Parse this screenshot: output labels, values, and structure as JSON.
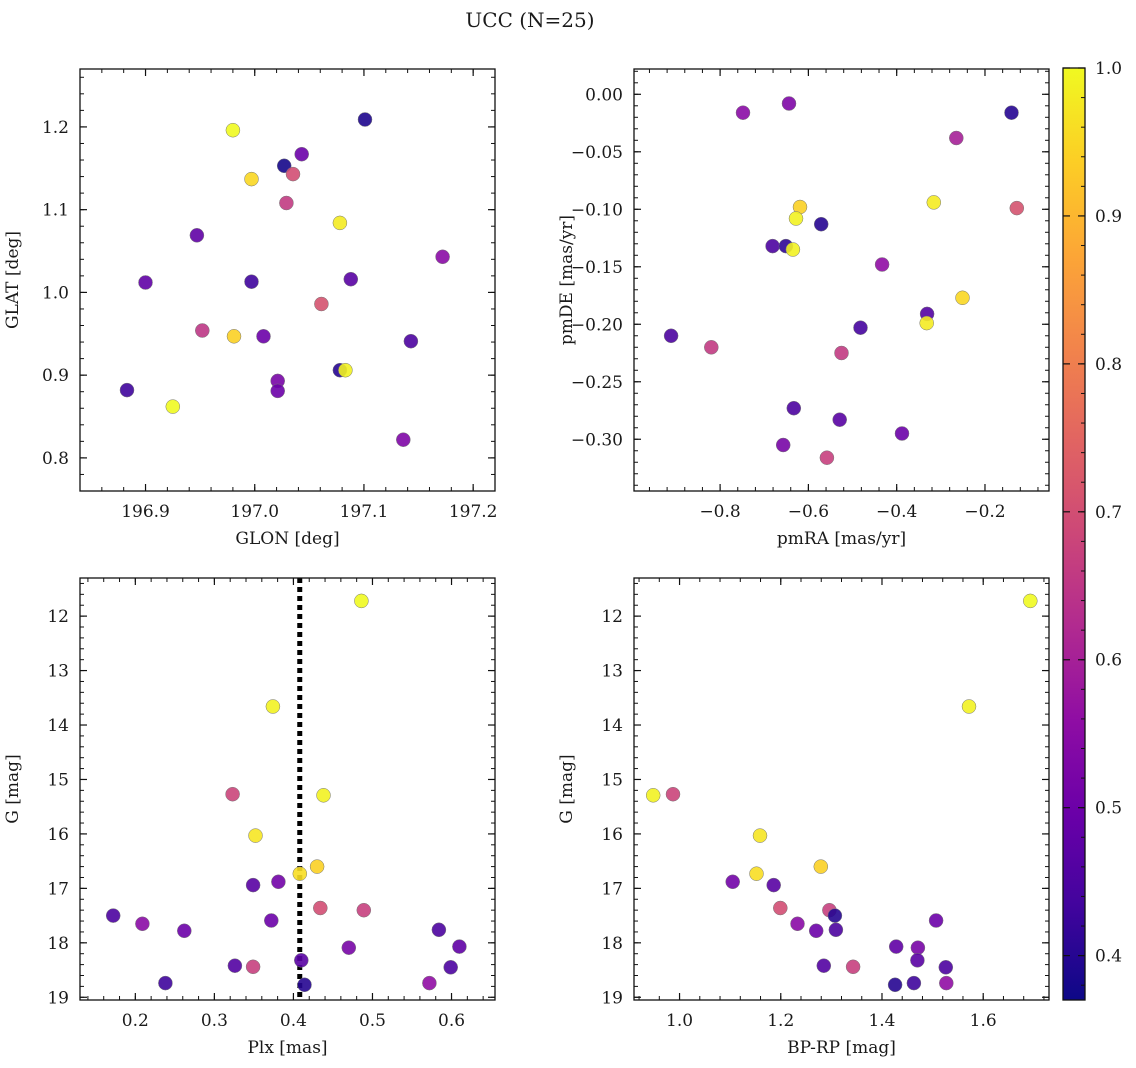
{
  "figure": {
    "title": "UCC (N=25)"
  },
  "colorbar": {
    "range": [
      0.37,
      1.0
    ],
    "ticks": [
      0.4,
      0.5,
      0.6,
      0.7,
      0.8,
      0.9,
      1.0
    ],
    "tick_labels": [
      "0.4",
      "0.5",
      "0.6",
      "0.7",
      "0.8",
      "0.9",
      "1.0"
    ],
    "colormap": "plasma"
  },
  "chart_data": [
    {
      "type": "scatter",
      "title": "",
      "xlabel": "GLON [deg]",
      "ylabel": "GLAT [deg]",
      "xlim": [
        196.84,
        197.22
      ],
      "ylim": [
        0.76,
        1.27
      ],
      "y_inverted": false,
      "xticks": [
        196.9,
        197.0,
        197.1,
        197.2
      ],
      "xtick_labels": [
        "196.9",
        "197.0",
        "197.1",
        "197.2"
      ],
      "yticks": [
        0.8,
        0.9,
        1.0,
        1.1,
        1.2
      ],
      "ytick_labels": [
        "0.8",
        "0.9",
        "1.0",
        "1.1",
        "1.2"
      ],
      "grid": false,
      "points": [
        {
          "x": 197.101,
          "y": 1.209,
          "c": 0.39
        },
        {
          "x": 196.98,
          "y": 1.196,
          "c": 1.0
        },
        {
          "x": 197.043,
          "y": 1.167,
          "c": 0.5
        },
        {
          "x": 197.027,
          "y": 1.153,
          "c": 0.38
        },
        {
          "x": 197.035,
          "y": 1.143,
          "c": 0.7
        },
        {
          "x": 196.997,
          "y": 1.137,
          "c": 0.95
        },
        {
          "x": 197.029,
          "y": 1.108,
          "c": 0.66
        },
        {
          "x": 197.078,
          "y": 1.084,
          "c": 0.98
        },
        {
          "x": 196.947,
          "y": 1.069,
          "c": 0.48
        },
        {
          "x": 197.172,
          "y": 1.043,
          "c": 0.55
        },
        {
          "x": 197.088,
          "y": 1.016,
          "c": 0.47
        },
        {
          "x": 196.997,
          "y": 1.013,
          "c": 0.43
        },
        {
          "x": 196.9,
          "y": 1.012,
          "c": 0.48
        },
        {
          "x": 197.061,
          "y": 0.986,
          "c": 0.71
        },
        {
          "x": 196.952,
          "y": 0.954,
          "c": 0.65
        },
        {
          "x": 196.981,
          "y": 0.947,
          "c": 0.94
        },
        {
          "x": 197.008,
          "y": 0.947,
          "c": 0.5
        },
        {
          "x": 197.143,
          "y": 0.941,
          "c": 0.45
        },
        {
          "x": 197.078,
          "y": 0.906,
          "c": 0.4
        },
        {
          "x": 197.083,
          "y": 0.906,
          "c": 0.99
        },
        {
          "x": 197.021,
          "y": 0.893,
          "c": 0.52
        },
        {
          "x": 196.883,
          "y": 0.882,
          "c": 0.43
        },
        {
          "x": 197.021,
          "y": 0.881,
          "c": 0.5
        },
        {
          "x": 196.925,
          "y": 0.862,
          "c": 1.0
        },
        {
          "x": 197.136,
          "y": 0.822,
          "c": 0.53
        }
      ]
    },
    {
      "type": "scatter",
      "title": "",
      "xlabel": "pmRA [mas/yr]",
      "ylabel": "pmDE [mas/yr]",
      "xlim": [
        -0.995,
        -0.055
      ],
      "ylim": [
        -0.345,
        0.022
      ],
      "y_inverted": false,
      "xticks": [
        -0.8,
        -0.6,
        -0.4,
        -0.2
      ],
      "xtick_labels": [
        "−0.8",
        "−0.6",
        "−0.4",
        "−0.2"
      ],
      "yticks": [
        0.0,
        -0.05,
        -0.1,
        -0.15,
        -0.2,
        -0.25,
        -0.3
      ],
      "ytick_labels": [
        "0.00",
        "−0.05",
        "−0.10",
        "−0.15",
        "−0.20",
        "−0.25",
        "−0.30"
      ],
      "grid": false,
      "points": [
        {
          "x": -0.644,
          "y": -0.008,
          "c": 0.53
        },
        {
          "x": -0.748,
          "y": -0.016,
          "c": 0.55
        },
        {
          "x": -0.14,
          "y": -0.016,
          "c": 0.4
        },
        {
          "x": -0.265,
          "y": -0.038,
          "c": 0.6
        },
        {
          "x": -0.316,
          "y": -0.094,
          "c": 0.98
        },
        {
          "x": -0.619,
          "y": -0.098,
          "c": 0.94
        },
        {
          "x": -0.128,
          "y": -0.099,
          "c": 0.71
        },
        {
          "x": -0.628,
          "y": -0.108,
          "c": 0.99
        },
        {
          "x": -0.571,
          "y": -0.113,
          "c": 0.4
        },
        {
          "x": -0.681,
          "y": -0.132,
          "c": 0.45
        },
        {
          "x": -0.651,
          "y": -0.132,
          "c": 0.41
        },
        {
          "x": -0.635,
          "y": -0.135,
          "c": 0.99
        },
        {
          "x": -0.433,
          "y": -0.148,
          "c": 0.56
        },
        {
          "x": -0.251,
          "y": -0.177,
          "c": 0.95
        },
        {
          "x": -0.331,
          "y": -0.191,
          "c": 0.46
        },
        {
          "x": -0.332,
          "y": -0.199,
          "c": 0.98
        },
        {
          "x": -0.482,
          "y": -0.203,
          "c": 0.44
        },
        {
          "x": -0.911,
          "y": -0.21,
          "c": 0.45
        },
        {
          "x": -0.82,
          "y": -0.22,
          "c": 0.66
        },
        {
          "x": -0.525,
          "y": -0.225,
          "c": 0.66
        },
        {
          "x": -0.633,
          "y": -0.273,
          "c": 0.45
        },
        {
          "x": -0.529,
          "y": -0.283,
          "c": 0.47
        },
        {
          "x": -0.388,
          "y": -0.295,
          "c": 0.5
        },
        {
          "x": -0.657,
          "y": -0.305,
          "c": 0.52
        },
        {
          "x": -0.558,
          "y": -0.316,
          "c": 0.67
        }
      ]
    },
    {
      "type": "scatter",
      "title": "",
      "xlabel": "Plx [mas]",
      "ylabel": "G [mag]",
      "xlim": [
        0.13,
        0.655
      ],
      "ylim": [
        11.3,
        19.05
      ],
      "y_inverted": true,
      "xticks": [
        0.2,
        0.3,
        0.4,
        0.5,
        0.6
      ],
      "xtick_labels": [
        "0.2",
        "0.3",
        "0.4",
        "0.5",
        "0.6"
      ],
      "yticks": [
        12,
        13,
        14,
        15,
        16,
        17,
        18,
        19
      ],
      "ytick_labels": [
        "12",
        "13",
        "14",
        "15",
        "16",
        "17",
        "18",
        "19"
      ],
      "grid": false,
      "vline": {
        "x": 0.408,
        "style": "dotted",
        "color": "#000000"
      },
      "points": [
        {
          "x": 0.486,
          "y": 11.72,
          "c": 1.0
        },
        {
          "x": 0.374,
          "y": 13.66,
          "c": 0.99
        },
        {
          "x": 0.323,
          "y": 15.27,
          "c": 0.68
        },
        {
          "x": 0.438,
          "y": 15.29,
          "c": 0.99
        },
        {
          "x": 0.352,
          "y": 16.03,
          "c": 0.97
        },
        {
          "x": 0.43,
          "y": 16.6,
          "c": 0.94
        },
        {
          "x": 0.408,
          "y": 16.73,
          "c": 0.96
        },
        {
          "x": 0.381,
          "y": 16.88,
          "c": 0.51
        },
        {
          "x": 0.349,
          "y": 16.94,
          "c": 0.47
        },
        {
          "x": 0.434,
          "y": 17.36,
          "c": 0.7
        },
        {
          "x": 0.489,
          "y": 17.4,
          "c": 0.67
        },
        {
          "x": 0.172,
          "y": 17.5,
          "c": 0.45
        },
        {
          "x": 0.372,
          "y": 17.59,
          "c": 0.5
        },
        {
          "x": 0.209,
          "y": 17.65,
          "c": 0.55
        },
        {
          "x": 0.584,
          "y": 17.76,
          "c": 0.45
        },
        {
          "x": 0.262,
          "y": 17.78,
          "c": 0.5
        },
        {
          "x": 0.61,
          "y": 18.07,
          "c": 0.48
        },
        {
          "x": 0.47,
          "y": 18.09,
          "c": 0.52
        },
        {
          "x": 0.41,
          "y": 18.32,
          "c": 0.47
        },
        {
          "x": 0.326,
          "y": 18.42,
          "c": 0.46
        },
        {
          "x": 0.349,
          "y": 18.44,
          "c": 0.67
        },
        {
          "x": 0.599,
          "y": 18.45,
          "c": 0.45
        },
        {
          "x": 0.238,
          "y": 18.74,
          "c": 0.43
        },
        {
          "x": 0.572,
          "y": 18.74,
          "c": 0.56
        },
        {
          "x": 0.414,
          "y": 18.77,
          "c": 0.4
        }
      ]
    },
    {
      "type": "scatter",
      "title": "",
      "xlabel": "BP-RP [mag]",
      "ylabel": "G [mag]",
      "xlim": [
        0.91,
        1.73
      ],
      "ylim": [
        11.3,
        19.05
      ],
      "y_inverted": true,
      "xticks": [
        1.0,
        1.2,
        1.4,
        1.6
      ],
      "xtick_labels": [
        "1.0",
        "1.2",
        "1.4",
        "1.6"
      ],
      "yticks": [
        12,
        13,
        14,
        15,
        16,
        17,
        18,
        19
      ],
      "ytick_labels": [
        "12",
        "13",
        "14",
        "15",
        "16",
        "17",
        "18",
        "19"
      ],
      "grid": false,
      "points": [
        {
          "x": 1.693,
          "y": 11.72,
          "c": 1.0
        },
        {
          "x": 1.572,
          "y": 13.66,
          "c": 0.99
        },
        {
          "x": 0.987,
          "y": 15.27,
          "c": 0.68
        },
        {
          "x": 0.948,
          "y": 15.29,
          "c": 0.99
        },
        {
          "x": 1.159,
          "y": 16.03,
          "c": 0.97
        },
        {
          "x": 1.279,
          "y": 16.6,
          "c": 0.94
        },
        {
          "x": 1.152,
          "y": 16.73,
          "c": 0.96
        },
        {
          "x": 1.105,
          "y": 16.88,
          "c": 0.51
        },
        {
          "x": 1.186,
          "y": 16.94,
          "c": 0.47
        },
        {
          "x": 1.199,
          "y": 17.36,
          "c": 0.7
        },
        {
          "x": 1.296,
          "y": 17.4,
          "c": 0.67
        },
        {
          "x": 1.307,
          "y": 17.5,
          "c": 0.4
        },
        {
          "x": 1.507,
          "y": 17.59,
          "c": 0.5
        },
        {
          "x": 1.233,
          "y": 17.65,
          "c": 0.55
        },
        {
          "x": 1.309,
          "y": 17.76,
          "c": 0.45
        },
        {
          "x": 1.27,
          "y": 17.78,
          "c": 0.5
        },
        {
          "x": 1.428,
          "y": 18.07,
          "c": 0.48
        },
        {
          "x": 1.471,
          "y": 18.09,
          "c": 0.52
        },
        {
          "x": 1.47,
          "y": 18.32,
          "c": 0.47
        },
        {
          "x": 1.285,
          "y": 18.42,
          "c": 0.46
        },
        {
          "x": 1.343,
          "y": 18.44,
          "c": 0.67
        },
        {
          "x": 1.526,
          "y": 18.45,
          "c": 0.45
        },
        {
          "x": 1.463,
          "y": 18.74,
          "c": 0.43
        },
        {
          "x": 1.527,
          "y": 18.74,
          "c": 0.56
        },
        {
          "x": 1.426,
          "y": 18.77,
          "c": 0.4
        }
      ]
    }
  ]
}
